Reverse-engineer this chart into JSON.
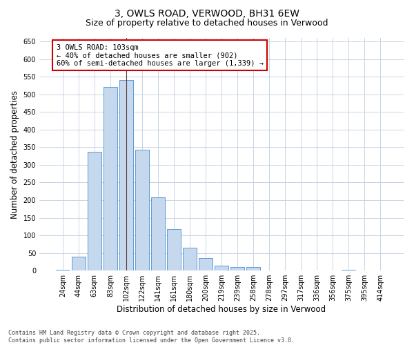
{
  "title": "3, OWLS ROAD, VERWOOD, BH31 6EW",
  "subtitle": "Size of property relative to detached houses in Verwood",
  "xlabel": "Distribution of detached houses by size in Verwood",
  "ylabel": "Number of detached properties",
  "categories": [
    "24sqm",
    "44sqm",
    "63sqm",
    "83sqm",
    "102sqm",
    "122sqm",
    "141sqm",
    "161sqm",
    "180sqm",
    "200sqm",
    "219sqm",
    "239sqm",
    "258sqm",
    "278sqm",
    "297sqm",
    "317sqm",
    "336sqm",
    "356sqm",
    "375sqm",
    "395sqm",
    "414sqm"
  ],
  "values": [
    2,
    40,
    337,
    522,
    540,
    342,
    207,
    118,
    65,
    35,
    15,
    11,
    10,
    0,
    0,
    0,
    0,
    0,
    2,
    0,
    1
  ],
  "bar_color": "#c5d8ed",
  "bar_edge_color": "#5b9bd5",
  "highlight_bar_index": 4,
  "highlight_line_color": "#5b3a3a",
  "annotation_text": "3 OWLS ROAD: 103sqm\n← 40% of detached houses are smaller (902)\n60% of semi-detached houses are larger (1,339) →",
  "annotation_box_color": "#ffffff",
  "annotation_box_edge_color": "#cc0000",
  "ylim": [
    0,
    660
  ],
  "yticks": [
    0,
    50,
    100,
    150,
    200,
    250,
    300,
    350,
    400,
    450,
    500,
    550,
    600,
    650
  ],
  "background_color": "#ffffff",
  "grid_color": "#c8d4e3",
  "footer_text": "Contains HM Land Registry data © Crown copyright and database right 2025.\nContains public sector information licensed under the Open Government Licence v3.0.",
  "title_fontsize": 10,
  "subtitle_fontsize": 9,
  "axis_label_fontsize": 8.5,
  "tick_fontsize": 7,
  "annotation_fontsize": 7.5,
  "footer_fontsize": 6
}
